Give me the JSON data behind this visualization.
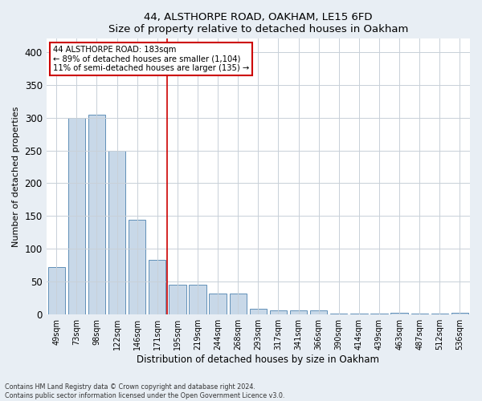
{
  "title1": "44, ALSTHORPE ROAD, OAKHAM, LE15 6FD",
  "title2": "Size of property relative to detached houses in Oakham",
  "xlabel": "Distribution of detached houses by size in Oakham",
  "ylabel": "Number of detached properties",
  "categories": [
    "49sqm",
    "73sqm",
    "98sqm",
    "122sqm",
    "146sqm",
    "171sqm",
    "195sqm",
    "219sqm",
    "244sqm",
    "268sqm",
    "293sqm",
    "317sqm",
    "341sqm",
    "366sqm",
    "390sqm",
    "414sqm",
    "439sqm",
    "463sqm",
    "487sqm",
    "512sqm",
    "536sqm"
  ],
  "bar_values": [
    72,
    300,
    304,
    249,
    144,
    83,
    45,
    45,
    32,
    32,
    9,
    6,
    6,
    6,
    2,
    1,
    1,
    3,
    1,
    1,
    3
  ],
  "bar_color": "#c8d8e8",
  "bar_edge_color": "#6090b8",
  "annotation_line1": "44 ALSTHORPE ROAD: 183sqm",
  "annotation_line2": "← 89% of detached houses are smaller (1,104)",
  "annotation_line3": "11% of semi-detached houses are larger (135) →",
  "footer1": "Contains HM Land Registry data © Crown copyright and database right 2024.",
  "footer2": "Contains public sector information licensed under the Open Government Licence v3.0.",
  "ylim": [
    0,
    420
  ],
  "yticks": [
    0,
    50,
    100,
    150,
    200,
    250,
    300,
    350,
    400
  ],
  "grid_color": "#c8d0d8",
  "background_color": "#e8eef4",
  "plot_bg_color": "#ffffff",
  "annotation_box_color": "#ffffff",
  "annotation_box_edge": "#cc0000",
  "vline_color": "#cc0000",
  "vline_x_index": 5.5
}
